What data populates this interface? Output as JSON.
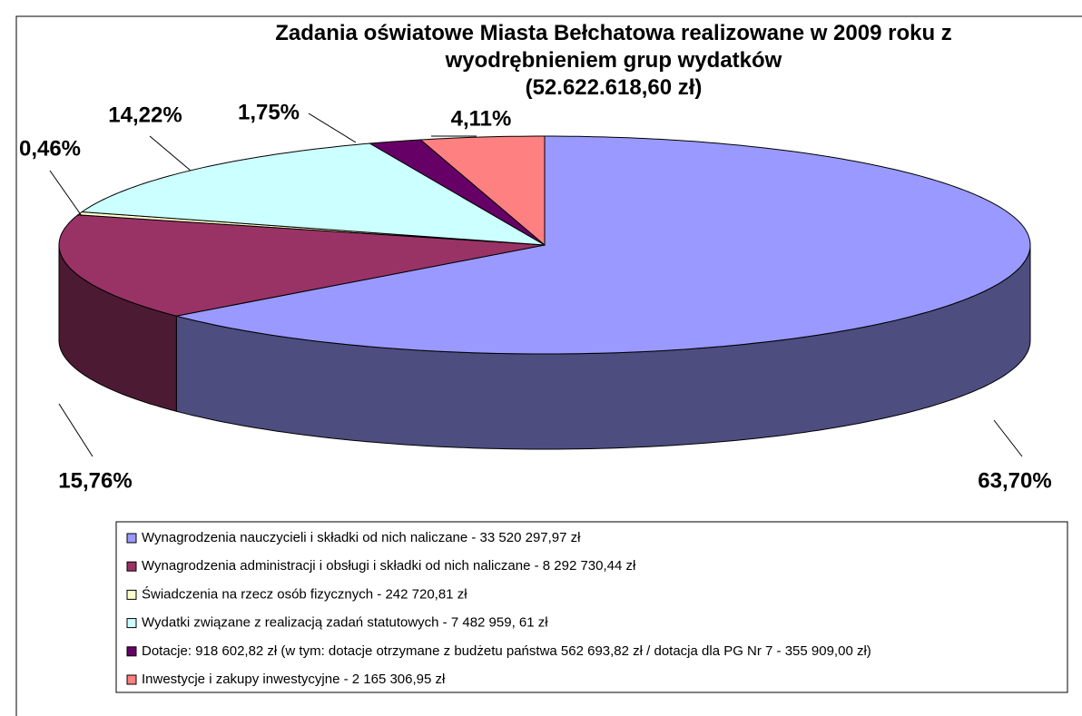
{
  "chart_data": {
    "type": "pie3d",
    "title": "Zadania oświatowe Miasta Bełchatowa realizowane w 2009 roku z wyodrębnieniem grup wydatków",
    "subtitle": "(52.622.618,60 zł)",
    "categories": [
      "Wynagrodzenia nauczycieli i składki od nich naliczane - 33 520 297,97 zł",
      "Wynagrodzenia administracji i obsługi i składki od nich naliczane - 8 292 730,44 zł",
      "Świadczenia na rzecz osób fizycznych - 242 720,81 zł",
      "Wydatki związane z realizacją zadań statutowych - 7 482 959, 61 zł",
      "Dotacje: 918 602,82 zł (w tym: dotacje otrzymane z budżetu państwa 562 693,82 zł / dotacja dla PG Nr 7 - 355 909,00 zł)",
      "Inwestycje i zakupy inwestycyjne - 2 165 306,95 zł"
    ],
    "values": [
      63.7,
      15.76,
      0.46,
      14.22,
      1.75,
      4.11
    ],
    "value_labels": [
      "63,70%",
      "15,76%",
      "0,46%",
      "14,22%",
      "1,75%",
      "4,11%"
    ],
    "colors": [
      "#9999ff",
      "#993366",
      "#ffffcc",
      "#ccffff",
      "#660066",
      "#ff8080"
    ],
    "legend": "bottom"
  }
}
